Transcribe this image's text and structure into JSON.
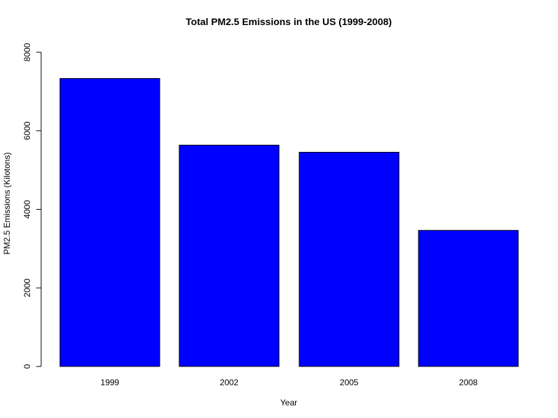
{
  "chart_data": {
    "type": "bar",
    "title": "Total PM2.5 Emissions in the US (1999-2008)",
    "xlabel": "Year",
    "ylabel": "PM2.5 Emissions (Kilotons)",
    "categories": [
      "1999",
      "2002",
      "2005",
      "2008"
    ],
    "values": [
      7332,
      5635,
      5454,
      3464
    ],
    "ylim": [
      0,
      8000
    ],
    "yticks": [
      0,
      2000,
      4000,
      6000,
      8000
    ],
    "bar_color": "#0000ff",
    "grid": false,
    "legend": "none"
  }
}
